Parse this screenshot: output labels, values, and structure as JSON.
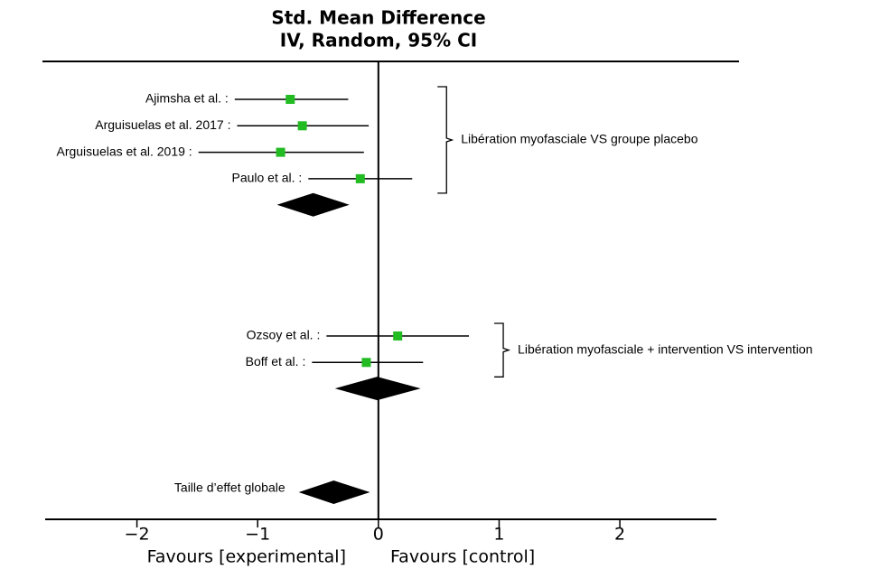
{
  "chart_data": {
    "type": "forest",
    "title": [
      "Std. Mean Difference",
      "IV, Random, 95% CI"
    ],
    "xlabel": [
      "Favours [experimental]",
      "Favours [control]"
    ],
    "xlim": [
      -2.76,
      2.8
    ],
    "xticks": [
      {
        "value": -2,
        "label": "−2"
      },
      {
        "value": -1,
        "label": "−1"
      },
      0,
      1,
      2
    ],
    "marker_color": "#22bb22",
    "diamond_color": "#000000",
    "groups": [
      {
        "label": "Libération myofasciale VS groupe placebo",
        "studies": [
          {
            "name": "Ajimsha et al. :",
            "estimate": -0.73,
            "ci_low": -1.19,
            "ci_high": -0.25
          },
          {
            "name": "Arguisuelas et al. 2017 :",
            "estimate": -0.63,
            "ci_low": -1.17,
            "ci_high": -0.08
          },
          {
            "name": "Arguisuelas et al. 2019 :",
            "estimate": -0.81,
            "ci_low": -1.49,
            "ci_high": -0.12
          },
          {
            "name": "Paulo et al. :",
            "estimate": -0.15,
            "ci_low": -0.58,
            "ci_high": 0.28
          }
        ],
        "summary": {
          "estimate": -0.54,
          "ci_low": -0.84,
          "ci_high": -0.24
        }
      },
      {
        "label": "Libération myofasciale + intervention VS intervention",
        "studies": [
          {
            "name": "Ozsoy et al. :",
            "estimate": 0.16,
            "ci_low": -0.43,
            "ci_high": 0.75
          },
          {
            "name": "Boff et al. :",
            "estimate": -0.1,
            "ci_low": -0.55,
            "ci_high": 0.37
          }
        ],
        "summary": {
          "estimate": -0.01,
          "ci_low": -0.36,
          "ci_high": 0.35
        }
      }
    ],
    "overall": {
      "label": "Taille d’effet globale",
      "estimate": -0.37,
      "ci_low": -0.66,
      "ci_high": -0.07
    }
  }
}
